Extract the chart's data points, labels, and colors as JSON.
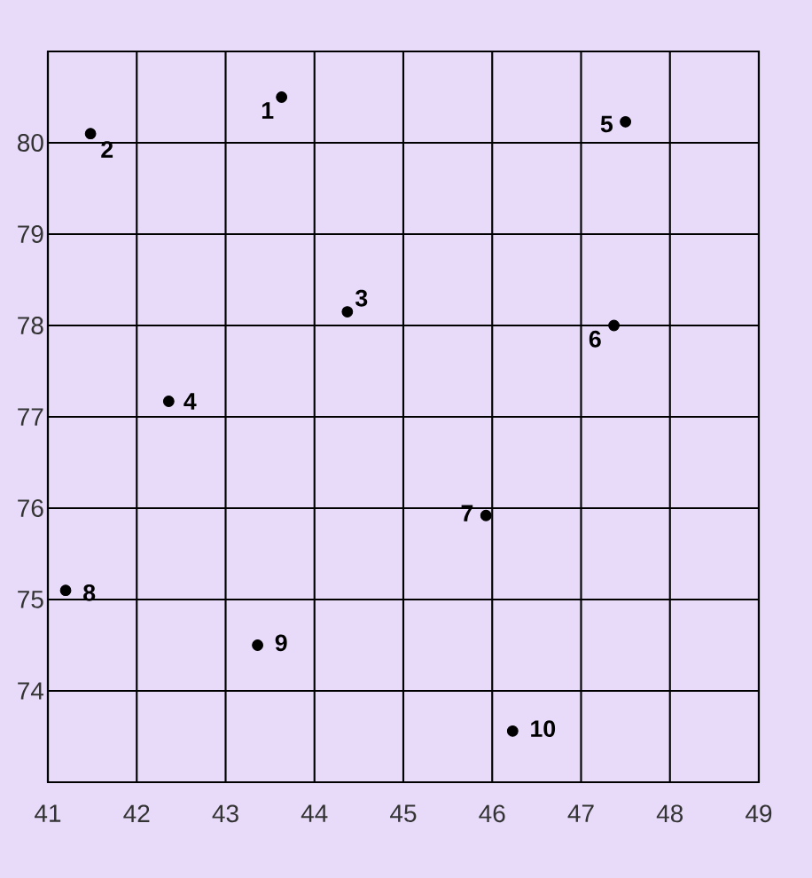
{
  "chart_data": {
    "type": "scatter",
    "color": "#000000",
    "grid": true,
    "x": [
      43.63,
      41.48,
      44.37,
      42.36,
      47.5,
      47.37,
      45.93,
      41.2,
      43.36,
      46.23
    ],
    "values": [
      80.5,
      80.1,
      78.15,
      77.17,
      80.23,
      78.0,
      75.92,
      75.1,
      74.5,
      73.56
    ],
    "xlim": [
      41,
      49
    ],
    "ylim": [
      73,
      81
    ],
    "xticks": [
      41,
      42,
      43,
      44,
      45,
      46,
      47,
      48,
      49
    ],
    "yticks": [
      74,
      75,
      76,
      77,
      78,
      79,
      80
    ],
    "annotations": [
      {
        "text": "1",
        "x": 43.63,
        "y": 80.5
      },
      {
        "text": "2",
        "x": 41.48,
        "y": 80.1
      },
      {
        "text": "3",
        "x": 44.37,
        "y": 78.15
      },
      {
        "text": "4",
        "x": 42.36,
        "y": 77.17
      },
      {
        "text": "5",
        "x": 47.5,
        "y": 80.23
      },
      {
        "text": "6",
        "x": 47.37,
        "y": 78.0
      },
      {
        "text": "7",
        "x": 45.93,
        "y": 75.92
      },
      {
        "text": "8",
        "x": 41.2,
        "y": 75.1
      },
      {
        "text": "9",
        "x": 43.36,
        "y": 74.5
      },
      {
        "text": "10",
        "x": 46.23,
        "y": 73.56
      }
    ]
  }
}
